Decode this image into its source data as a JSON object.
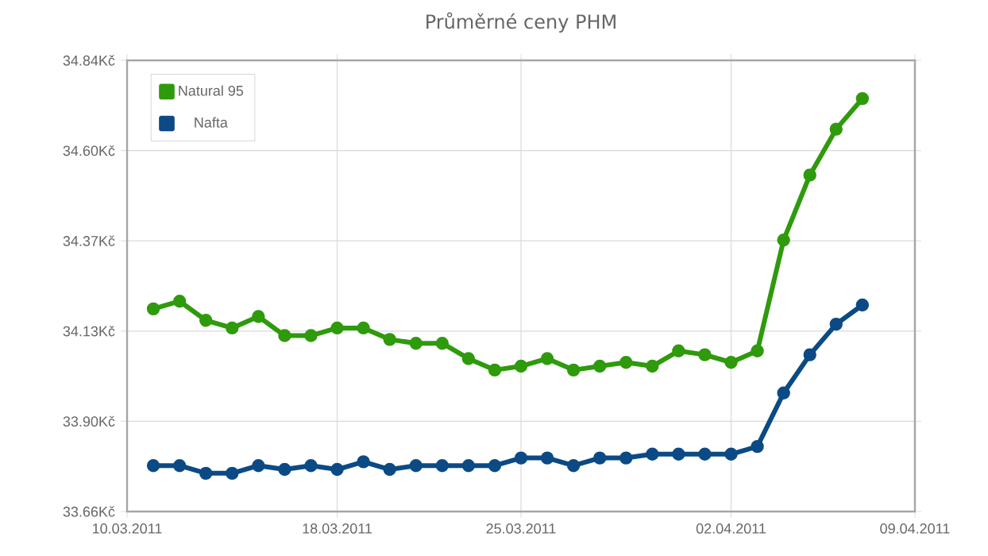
{
  "chart_data": {
    "type": "line",
    "title": "Průměrné ceny PHM",
    "x": [
      "2011-03-11",
      "2011-03-12",
      "2011-03-13",
      "2011-03-14",
      "2011-03-15",
      "2011-03-16",
      "2011-03-17",
      "2011-03-18",
      "2011-03-19",
      "2011-03-20",
      "2011-03-21",
      "2011-03-22",
      "2011-03-23",
      "2011-03-24",
      "2011-03-25",
      "2011-03-26",
      "2011-03-27",
      "2011-03-28",
      "2011-03-29",
      "2011-03-30",
      "2011-03-31",
      "2011-04-01",
      "2011-04-02",
      "2011-04-03",
      "2011-04-04",
      "2011-04-05",
      "2011-04-06",
      "2011-04-07"
    ],
    "series": [
      {
        "name": "Natural 95",
        "color": "#2e9a0c",
        "values": [
          34.19,
          34.21,
          34.16,
          34.14,
          34.17,
          34.12,
          34.12,
          34.14,
          34.14,
          34.11,
          34.1,
          34.1,
          34.06,
          34.03,
          34.04,
          34.06,
          34.03,
          34.04,
          34.05,
          34.04,
          34.08,
          34.07,
          34.05,
          34.08,
          34.37,
          34.54,
          34.66,
          34.74
        ]
      },
      {
        "name": "Nafta",
        "color": "#0b4a85",
        "values": [
          33.78,
          33.78,
          33.76,
          33.76,
          33.78,
          33.77,
          33.78,
          33.77,
          33.79,
          33.77,
          33.78,
          33.78,
          33.78,
          33.78,
          33.8,
          33.8,
          33.78,
          33.8,
          33.8,
          33.81,
          33.81,
          33.81,
          33.81,
          33.83,
          33.97,
          34.07,
          34.15,
          34.2
        ]
      }
    ],
    "xlim": [
      "2011-03-10",
      "2011-04-09"
    ],
    "xticks": [
      {
        "value": "2011-03-10",
        "label": "10.03.2011"
      },
      {
        "value": "2011-03-18",
        "label": "18.03.2011"
      },
      {
        "value": "2011-03-25",
        "label": "25.03.2011"
      },
      {
        "value": "2011-04-02",
        "label": "02.04.2011"
      },
      {
        "value": "2011-04-09",
        "label": "09.04.2011"
      }
    ],
    "ylim": [
      33.66,
      34.84
    ],
    "yticks": [
      {
        "value": 33.66,
        "label": "33.66Kč"
      },
      {
        "value": 33.896,
        "label": "33.90Kč"
      },
      {
        "value": 34.132,
        "label": "34.13Kč"
      },
      {
        "value": 34.368,
        "label": "34.37Kč"
      },
      {
        "value": 34.604,
        "label": "34.60Kč"
      },
      {
        "value": 34.84,
        "label": "34.84Kč"
      }
    ],
    "grid": true,
    "legend": "top left",
    "marker": "circle",
    "line_style": "solid"
  }
}
